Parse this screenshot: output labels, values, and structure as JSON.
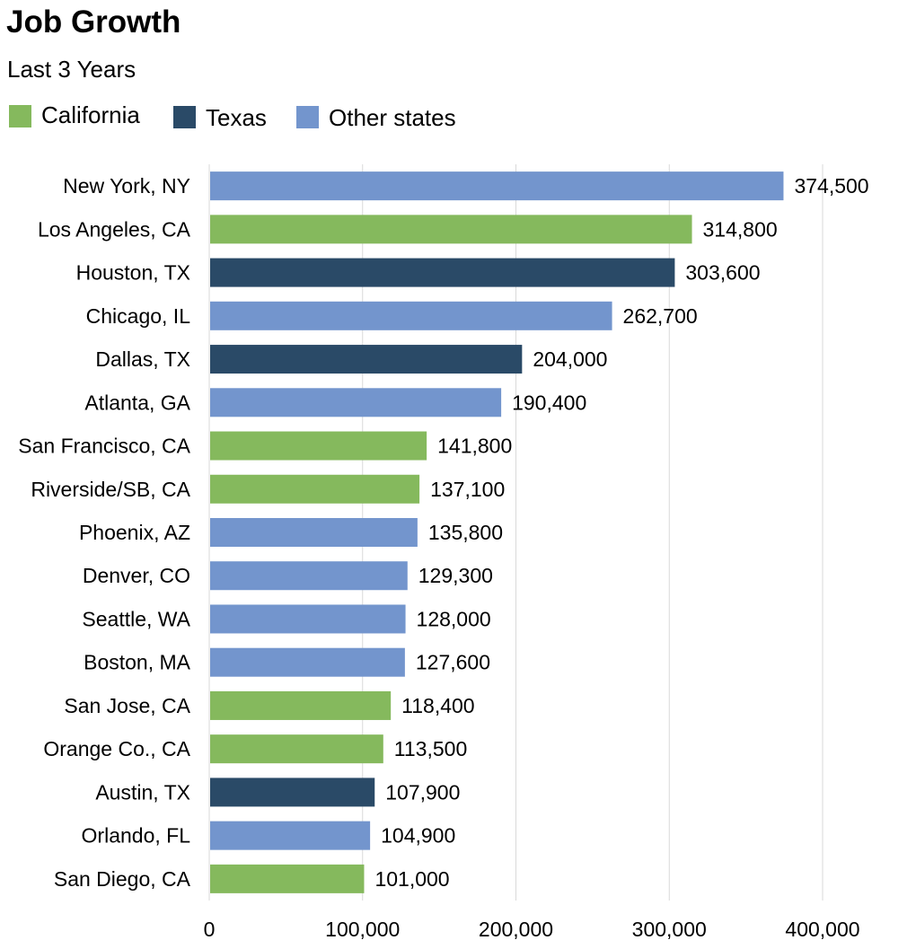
{
  "title": "Job Growth",
  "subtitle": "Last 3 Years",
  "legend": [
    {
      "label": "California",
      "color": "#85b95d"
    },
    {
      "label": "Texas",
      "color": "#2a4a67"
    },
    {
      "label": "Other states",
      "color": "#7395cd"
    }
  ],
  "chart_data": {
    "type": "bar",
    "orientation": "horizontal",
    "title": "Job Growth",
    "subtitle": "Last 3 Years",
    "xlim": [
      0,
      400000
    ],
    "xticks": [
      0,
      100000,
      200000,
      300000,
      400000
    ],
    "xtick_labels": [
      "0",
      "100,000",
      "200,000",
      "300,000",
      "400,000"
    ],
    "grid": "vertical",
    "legend_position": "top-left",
    "categories": [
      "New York, NY",
      "Los Angeles, CA",
      "Houston, TX",
      "Chicago, IL",
      "Dallas, TX",
      "Atlanta, GA",
      "San Francisco, CA",
      "Riverside/SB, CA",
      "Phoenix, AZ",
      "Denver, CO",
      "Seattle, WA",
      "Boston, MA",
      "San Jose, CA",
      "Orange Co., CA",
      "Austin, TX",
      "Orlando, FL",
      "San Diego, CA"
    ],
    "values": [
      374500,
      314800,
      303600,
      262700,
      204000,
      190400,
      141800,
      137100,
      135800,
      129300,
      128000,
      127600,
      118400,
      113500,
      107900,
      104900,
      101000
    ],
    "value_labels": [
      "374,500",
      "314,800",
      "303,600",
      "262,700",
      "204,000",
      "190,400",
      "141,800",
      "137,100",
      "135,800",
      "129,300",
      "128,000",
      "127,600",
      "118,400",
      "113,500",
      "107,900",
      "104,900",
      "101,000"
    ],
    "groups": [
      "Other states",
      "California",
      "Texas",
      "Other states",
      "Texas",
      "Other states",
      "California",
      "California",
      "Other states",
      "Other states",
      "Other states",
      "Other states",
      "California",
      "California",
      "Texas",
      "Other states",
      "California"
    ]
  }
}
